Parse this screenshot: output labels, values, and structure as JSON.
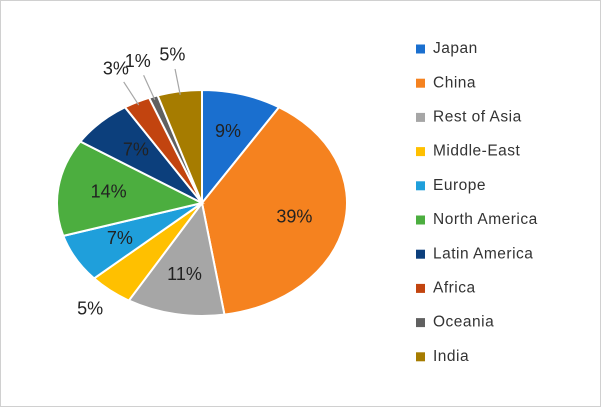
{
  "chart_data": {
    "type": "pie",
    "categories": [
      "Japan",
      "China",
      "Rest of Asia",
      "Middle-East",
      "Europe",
      "North America",
      "Latin America",
      "Africa",
      "Oceania",
      "India"
    ],
    "values": [
      9,
      39,
      11,
      5,
      7,
      14,
      7,
      3,
      1,
      5
    ],
    "value_labels": [
      "9%",
      "39%",
      "11%",
      "5%",
      "7%",
      "14%",
      "7%",
      "3%",
      "1%",
      "5%"
    ],
    "colors": [
      "#1a6fcf",
      "#f5821f",
      "#a6a6a6",
      "#ffc000",
      "#1f9fdb",
      "#4cae3f",
      "#0c3f7c",
      "#c2440f",
      "#606060",
      "#a67c00"
    ],
    "legend": "right"
  }
}
